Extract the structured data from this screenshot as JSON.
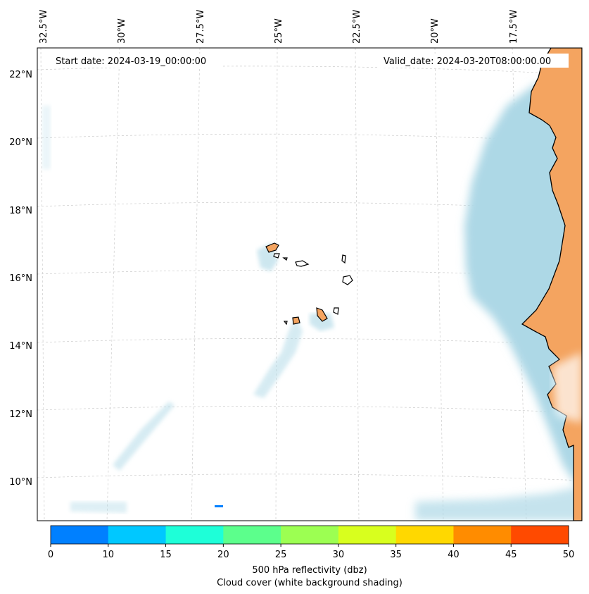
{
  "start_date": "Start date: 2024-03-19_00:00:00",
  "valid_date": "Valid_date: 2024-03-20T08:00:00.00",
  "longitude_labels": [
    "32.5°W",
    "30°W",
    "27.5°W",
    "25°W",
    "22.5°W",
    "20°W",
    "17.5°W"
  ],
  "latitude_labels": [
    "22°N",
    "20°N",
    "18°N",
    "16°N",
    "14°N",
    "12°N",
    "10°N"
  ],
  "colorbar": {
    "ticks": [
      "0",
      "10",
      "15",
      "20",
      "25",
      "30",
      "35",
      "40",
      "45",
      "50"
    ],
    "colors": [
      "#0080ff",
      "#00c8ff",
      "#1effd8",
      "#5cff8c",
      "#9cff52",
      "#d8ff1e",
      "#ffd800",
      "#ff8c00",
      "#ff4a00"
    ],
    "label_line1": "500 hPa reflectivity (dbz)",
    "label_line2": "Cloud cover (white background shading)"
  },
  "colors": {
    "land": "#f4a460",
    "cloud": "#add8e6",
    "coastline": "#000000",
    "gridline": "#cccccc"
  }
}
